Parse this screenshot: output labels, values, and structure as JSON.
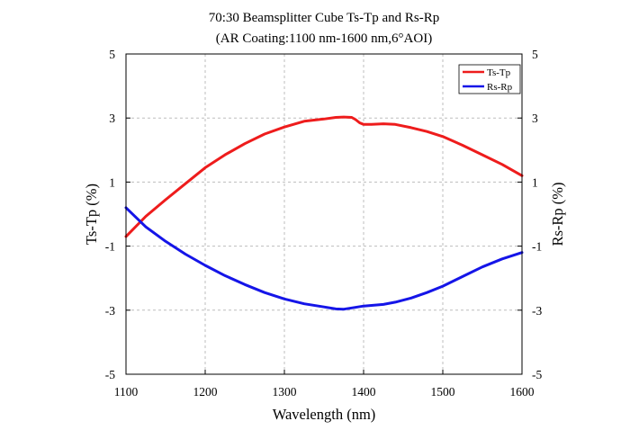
{
  "chart_data": {
    "type": "line",
    "title": "70:30 Beamsplitter Cube Ts-Tp and Rs-Rp",
    "subtitle": "(AR Coating:1100 nm-1600 nm,6°AOI)",
    "xlabel": "Wavelength (nm)",
    "ylabel_left": "Ts-Tp (%)",
    "ylabel_right": "Rs-Rp (%)",
    "xlim": [
      1100,
      1600
    ],
    "ylim": [
      -5,
      5
    ],
    "x_ticks": [
      "1100",
      "1200",
      "1300",
      "1400",
      "1500",
      "1600"
    ],
    "y_ticks": [
      "-5",
      "-3",
      "-1",
      "1",
      "3",
      "5"
    ],
    "grid": true,
    "legend_position": "top-right",
    "series": [
      {
        "name": "Ts-Tp",
        "color": "#ee1c1c",
        "axis": "left",
        "x": [
          1100,
          1125,
          1150,
          1175,
          1200,
          1225,
          1250,
          1275,
          1300,
          1325,
          1350,
          1365,
          1375,
          1385,
          1390,
          1395,
          1400,
          1410,
          1425,
          1440,
          1460,
          1480,
          1500,
          1525,
          1550,
          1575,
          1600
        ],
        "y": [
          -0.7,
          -0.07,
          0.45,
          0.95,
          1.45,
          1.85,
          2.2,
          2.5,
          2.72,
          2.9,
          2.97,
          3.02,
          3.03,
          3.02,
          2.95,
          2.85,
          2.8,
          2.8,
          2.82,
          2.8,
          2.7,
          2.58,
          2.42,
          2.15,
          1.85,
          1.55,
          1.2
        ]
      },
      {
        "name": "Rs-Rp",
        "color": "#1515e8",
        "axis": "right",
        "x": [
          1100,
          1125,
          1150,
          1175,
          1200,
          1225,
          1250,
          1275,
          1300,
          1325,
          1350,
          1365,
          1375,
          1385,
          1400,
          1410,
          1425,
          1440,
          1460,
          1480,
          1500,
          1525,
          1550,
          1575,
          1600
        ],
        "y": [
          0.2,
          -0.4,
          -0.85,
          -1.25,
          -1.6,
          -1.92,
          -2.2,
          -2.45,
          -2.65,
          -2.8,
          -2.9,
          -2.96,
          -2.97,
          -2.93,
          -2.87,
          -2.85,
          -2.82,
          -2.75,
          -2.62,
          -2.45,
          -2.25,
          -1.95,
          -1.65,
          -1.4,
          -1.2
        ]
      }
    ]
  }
}
